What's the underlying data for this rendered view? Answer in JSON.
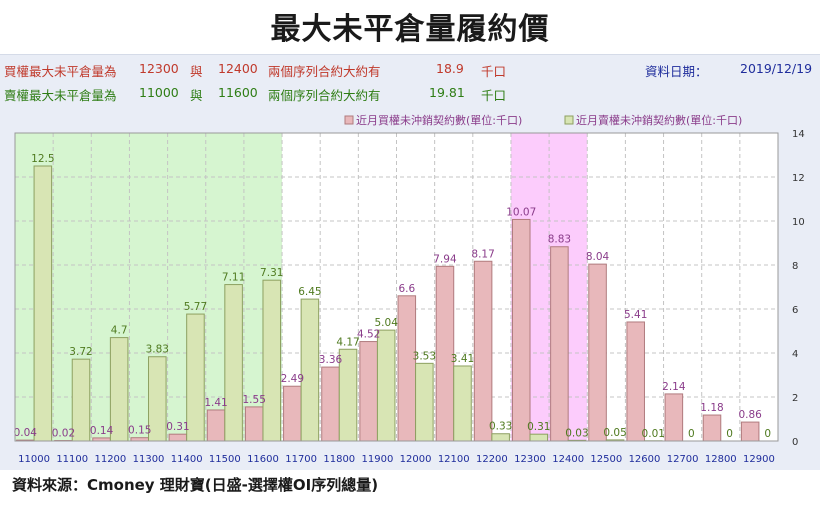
{
  "title": "最大未平倉量履約價",
  "info": {
    "call": {
      "label": "買權最大未平倉量為",
      "strike1": "12300",
      "and": "與",
      "strike2": "12400",
      "desc": "兩個序列合約大約有",
      "value": "18.9",
      "unit": "千口"
    },
    "put": {
      "label": "賣權最大未平倉量為",
      "strike1": "11000",
      "and": "與",
      "strike2": "11600",
      "desc": "兩個序列合約大約有",
      "value": "19.81",
      "unit": "千口"
    },
    "date_label": "資料日期：",
    "date": "2019/12/19"
  },
  "colors": {
    "call_bar": "#e8b8bb",
    "put_bar": "#d8e5b4",
    "put_zone": "#d6f5d0",
    "call_zone": "#fcccfc",
    "label_purple": "#8a3c8a",
    "label_green": "#4f7a1f",
    "axis_blue": "#1f2d9c"
  },
  "chart_data": {
    "type": "bar",
    "categories": [
      "11000",
      "11100",
      "11200",
      "11300",
      "11400",
      "11500",
      "11600",
      "11700",
      "11800",
      "11900",
      "12000",
      "12100",
      "12200",
      "12300",
      "12400",
      "12500",
      "12600",
      "12700",
      "12800",
      "12900"
    ],
    "series": [
      {
        "name": "近月買權未沖銷契約數(單位:千口)",
        "values": [
          0.04,
          0.02,
          0.14,
          0.15,
          0.31,
          1.41,
          1.55,
          2.49,
          3.36,
          4.52,
          6.6,
          7.94,
          8.17,
          10.07,
          8.83,
          8.04,
          5.41,
          2.14,
          1.18,
          0.86
        ]
      },
      {
        "name": "近月賣權未沖銷契約數(單位:千口)",
        "values": [
          12.5,
          3.72,
          4.7,
          3.83,
          5.77,
          7.11,
          7.31,
          6.45,
          4.17,
          5.04,
          3.53,
          3.41,
          0.33,
          0.31,
          0.03,
          0.05,
          0.01,
          0,
          0,
          0
        ]
      }
    ],
    "ylim": [
      0,
      14
    ],
    "yticks": [
      0,
      2,
      4,
      6,
      8,
      10,
      12,
      14
    ],
    "grid": true,
    "legend": "top-right"
  },
  "source": "資料來源：Cmoney 理財寶(日盛-選擇權OI序列總量)"
}
